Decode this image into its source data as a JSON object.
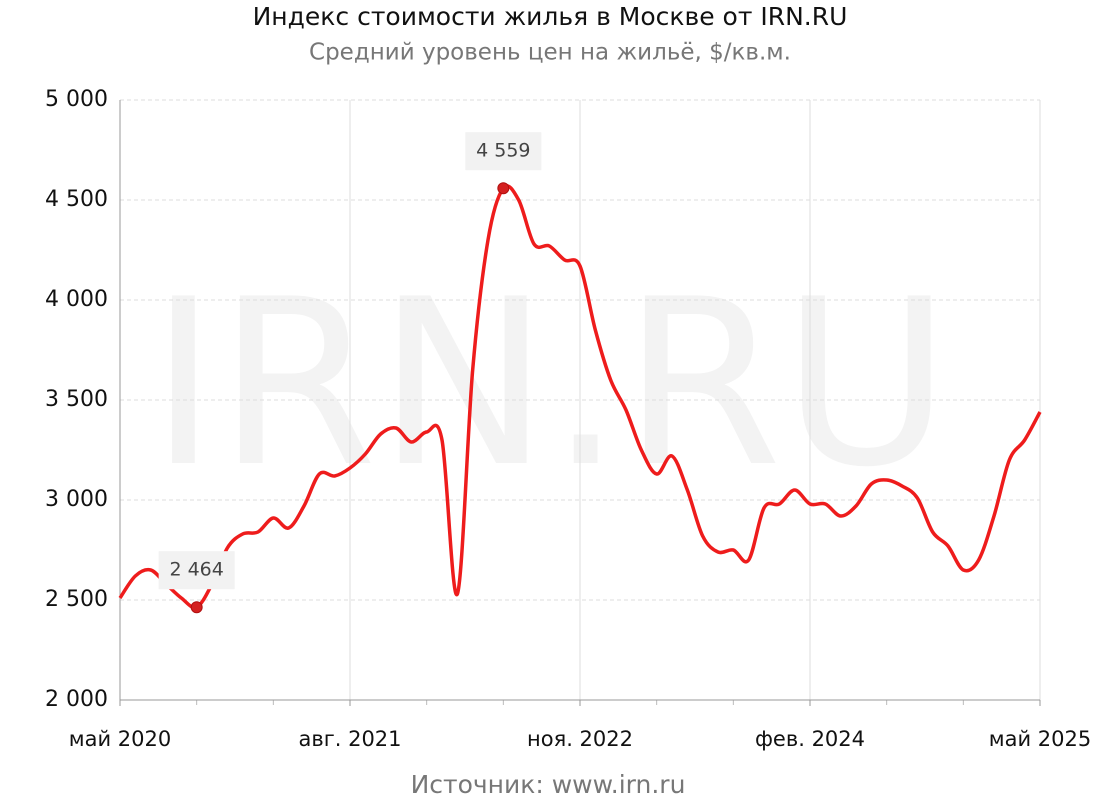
{
  "chart_data": {
    "type": "line",
    "title": "Индекс стоимости жилья в Москве от IRN.RU",
    "subtitle": "Средний уровень цен на жильё, $/кв.м.",
    "source": "Источник: www.irn.ru",
    "watermark": "IRN.RU",
    "categories": [
      "май 2020",
      null,
      null,
      null,
      null,
      null,
      null,
      null,
      null,
      null,
      null,
      null,
      null,
      null,
      null,
      "авг. 2021",
      null,
      null,
      null,
      null,
      null,
      null,
      null,
      null,
      null,
      null,
      null,
      null,
      null,
      null,
      "ноя. 2022",
      null,
      null,
      null,
      null,
      null,
      null,
      null,
      null,
      null,
      null,
      null,
      null,
      null,
      null,
      "фев. 2024",
      null,
      null,
      null,
      null,
      null,
      null,
      null,
      null,
      null,
      null,
      null,
      null,
      null,
      null,
      "май 2025"
    ],
    "series": [
      {
        "name": "Индекс стоимости жилья",
        "color": "#ee1c1c",
        "values": [
          2510,
          2620,
          2650,
          2580,
          2510,
          2464,
          2580,
          2760,
          2830,
          2840,
          2910,
          2860,
          2970,
          3130,
          3120,
          3160,
          3230,
          3330,
          3360,
          3290,
          3340,
          3300,
          2530,
          3650,
          4300,
          4559,
          4500,
          4280,
          4270,
          4200,
          4170,
          3850,
          3600,
          3450,
          3250,
          3130,
          3220,
          3050,
          2820,
          2740,
          2750,
          2700,
          2960,
          2980,
          3050,
          2980,
          2980,
          2920,
          2970,
          3080,
          3100,
          3070,
          3010,
          2840,
          2770,
          2650,
          2700,
          2920,
          3200,
          3300,
          3440
        ],
        "value_labels": [
          null,
          null,
          null,
          null,
          null,
          "2 464",
          null,
          null,
          null,
          null,
          null,
          null,
          null,
          null,
          null,
          null,
          null,
          null,
          null,
          null,
          null,
          null,
          null,
          null,
          null,
          "4 559",
          null,
          null,
          null,
          null,
          null,
          null,
          null,
          null,
          null,
          null,
          null,
          null,
          null,
          null,
          null,
          null,
          null,
          null,
          null,
          null,
          null,
          null,
          null,
          null,
          null,
          null,
          null,
          null,
          null,
          null,
          null,
          null,
          null,
          null,
          null
        ]
      }
    ],
    "ylim": [
      2000,
      5000
    ],
    "yticks": [
      {
        "value": 2000,
        "label": "2 000"
      },
      {
        "value": 2500,
        "label": "2 500"
      },
      {
        "value": 3000,
        "label": "3 000"
      },
      {
        "value": 3500,
        "label": "3 500"
      },
      {
        "value": 4000,
        "label": "4 000"
      },
      {
        "value": 4500,
        "label": "4 500"
      },
      {
        "value": 5000,
        "label": "5 000"
      }
    ],
    "grid": true
  }
}
